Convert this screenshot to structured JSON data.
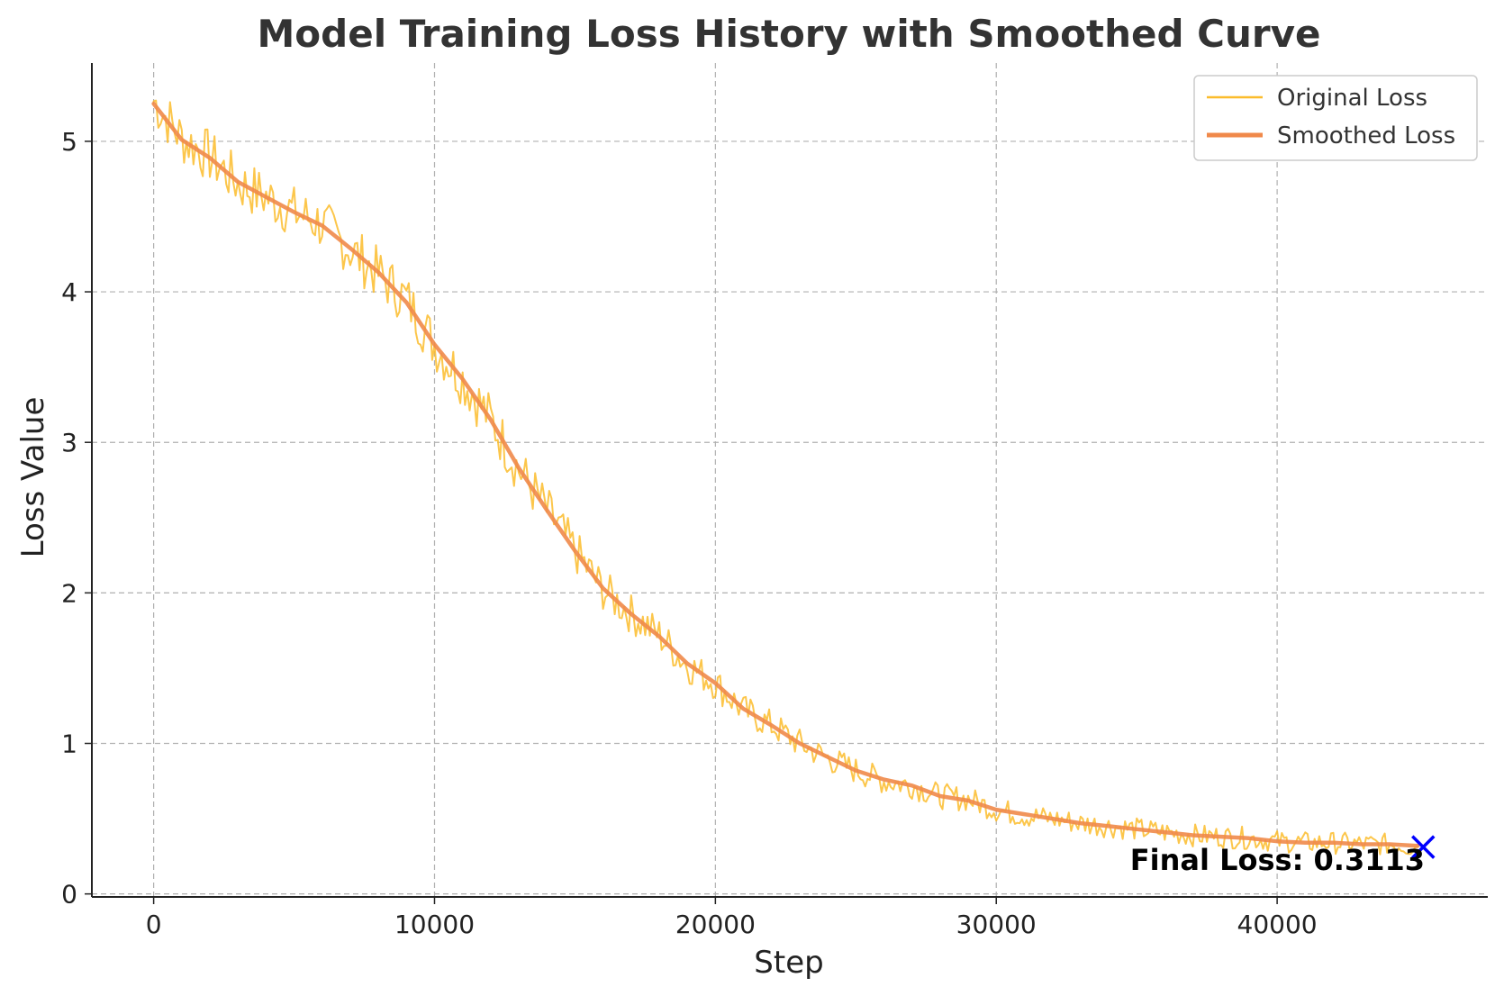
{
  "chart_data": {
    "type": "line",
    "title": "Model Training Loss History with Smoothed Curve",
    "xlabel": "Step",
    "ylabel": "Loss Value",
    "xlim": [
      -2200,
      47500
    ],
    "ylim": [
      -0.02,
      5.52
    ],
    "xticks": [
      0,
      10000,
      20000,
      30000,
      40000
    ],
    "yticks": [
      0,
      1,
      2,
      3,
      4,
      5
    ],
    "grid": true,
    "legend_position": "top-right",
    "series": [
      {
        "name": "Original Loss",
        "color": "#fbbc2c",
        "x": [
          0,
          1000,
          2000,
          3000,
          4000,
          5000,
          6000,
          7000,
          8000,
          9000,
          10000,
          11000,
          12000,
          13000,
          14000,
          15000,
          16000,
          17000,
          18000,
          19000,
          20000,
          21000,
          22000,
          23000,
          24000,
          25000,
          26000,
          27000,
          28000,
          29000,
          30000,
          31000,
          32000,
          33000,
          34000,
          35000,
          36000,
          37000,
          38000,
          39000,
          40000,
          41000,
          42000,
          43000,
          44000,
          45000
        ],
        "y": [
          5.27,
          5.02,
          4.9,
          4.72,
          4.63,
          4.53,
          4.45,
          4.28,
          4.12,
          3.95,
          3.65,
          3.42,
          3.15,
          2.82,
          2.55,
          2.28,
          2.02,
          1.86,
          1.72,
          1.52,
          1.4,
          1.22,
          1.12,
          1.0,
          0.9,
          0.82,
          0.75,
          0.72,
          0.65,
          0.63,
          0.56,
          0.52,
          0.5,
          0.47,
          0.45,
          0.43,
          0.41,
          0.39,
          0.38,
          0.37,
          0.35,
          0.34,
          0.34,
          0.33,
          0.33,
          0.31
        ]
      },
      {
        "name": "Smoothed Loss",
        "color": "#f0894a",
        "x": [
          0,
          1000,
          2000,
          3000,
          4000,
          5000,
          6000,
          7000,
          8000,
          9000,
          10000,
          11000,
          12000,
          13000,
          14000,
          15000,
          16000,
          17000,
          18000,
          19000,
          20000,
          21000,
          22000,
          23000,
          24000,
          25000,
          26000,
          27000,
          28000,
          29000,
          30000,
          31000,
          32000,
          33000,
          34000,
          35000,
          36000,
          37000,
          38000,
          39000,
          40000,
          41000,
          42000,
          43000,
          44000,
          45000
        ],
        "y": [
          5.25,
          5.01,
          4.89,
          4.73,
          4.63,
          4.53,
          4.44,
          4.29,
          4.13,
          3.93,
          3.65,
          3.42,
          3.15,
          2.83,
          2.55,
          2.28,
          2.03,
          1.86,
          1.71,
          1.53,
          1.4,
          1.23,
          1.12,
          1.0,
          0.91,
          0.82,
          0.76,
          0.72,
          0.65,
          0.62,
          0.56,
          0.53,
          0.5,
          0.47,
          0.45,
          0.43,
          0.41,
          0.39,
          0.38,
          0.37,
          0.35,
          0.34,
          0.34,
          0.33,
          0.33,
          0.32
        ]
      }
    ],
    "final_point": {
      "x": 45200,
      "y": 0.3113,
      "color": "#0000ff",
      "marker": "x"
    },
    "annotation": "Final Loss: 0.3113"
  }
}
